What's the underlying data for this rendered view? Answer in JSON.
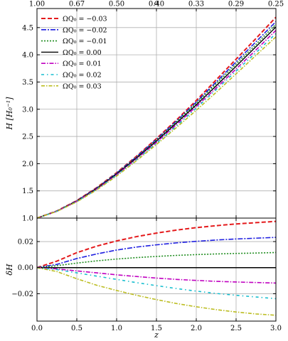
{
  "chart_data": [
    {
      "type": "line",
      "panel": "top",
      "xlabel": "z",
      "ylabel": "H [H₀⁻¹]",
      "top_xlabel": "a",
      "xlim": [
        0.0,
        3.0
      ],
      "ylim": [
        1.0,
        4.85
      ],
      "x_ticks": [
        "0.0",
        "0.5",
        "1.0",
        "1.5",
        "2.0",
        "2.5",
        "3.0"
      ],
      "y_ticks": [
        {
          "value": 1.0,
          "label": "1.0"
        },
        {
          "value": 1.5,
          "label": "1.5"
        },
        {
          "value": 2.0,
          "label": "2.0"
        },
        {
          "value": 2.5,
          "label": "2.5"
        },
        {
          "value": 3.0,
          "label": "3.0"
        },
        {
          "value": 3.5,
          "label": "3.5"
        },
        {
          "value": 4.0,
          "label": "4.0"
        },
        {
          "value": 4.5,
          "label": "4.5"
        }
      ],
      "top_ticks": [
        {
          "z": 0.0,
          "label": "1.00"
        },
        {
          "z": 0.5,
          "label": "0.67"
        },
        {
          "z": 1.0,
          "label": "0.50"
        },
        {
          "z": 1.5,
          "label": "0.40"
        },
        {
          "z": 2.0,
          "label": "0.33"
        },
        {
          "z": 2.5,
          "label": "0.29"
        },
        {
          "z": 3.0,
          "label": "0.25"
        }
      ],
      "grid": true,
      "legend": "top-left",
      "x": [
        0.0,
        0.25,
        0.5,
        0.75,
        1.0,
        1.25,
        1.5,
        1.75,
        2.0,
        2.25,
        2.5,
        2.75,
        3.0
      ],
      "series": [
        {
          "name": "ΩQ₀ = −0.03",
          "color": "#e41a1c",
          "dash": "6,3",
          "width": 2,
          "values": [
            1.0,
            1.131,
            1.322,
            1.56,
            1.834,
            2.137,
            2.46,
            2.8,
            3.16,
            3.54,
            3.92,
            4.3,
            4.69
          ]
        },
        {
          "name": "ΩQ₀ = −0.02",
          "color": "#1f1fe0",
          "dash": "7,2,2,2",
          "width": 1.6,
          "values": [
            1.0,
            1.129,
            1.318,
            1.553,
            1.826,
            2.127,
            2.446,
            2.782,
            3.131,
            3.5,
            3.87,
            4.24,
            4.61
          ]
        },
        {
          "name": "ΩQ₀ = −0.01",
          "color": "#1e8c1e",
          "dash": "2,2",
          "width": 1.6,
          "values": [
            1.0,
            1.128,
            1.315,
            1.548,
            1.818,
            2.116,
            2.43,
            2.766,
            3.11,
            3.47,
            3.83,
            4.19,
            4.56
          ]
        },
        {
          "name": "ΩQ₀ = 0.00",
          "color": "#000000",
          "dash": "",
          "width": 1.4,
          "values": [
            1.0,
            1.127,
            1.311,
            1.541,
            1.808,
            2.103,
            2.414,
            2.744,
            3.08,
            3.43,
            3.79,
            4.15,
            4.51
          ]
        },
        {
          "name": "ΩQ₀ = 0.01",
          "color": "#c000c0",
          "dash": "6,2,1.5,2",
          "width": 1.6,
          "values": [
            1.0,
            1.125,
            1.307,
            1.533,
            1.796,
            2.086,
            2.392,
            2.716,
            3.05,
            3.39,
            3.74,
            4.09,
            4.45
          ]
        },
        {
          "name": "ΩQ₀ = 0.02",
          "color": "#17becf",
          "dash": "4,4,1.5,4",
          "width": 1.6,
          "values": [
            1.0,
            1.124,
            1.302,
            1.526,
            1.786,
            2.072,
            2.374,
            2.69,
            3.02,
            3.36,
            3.7,
            4.04,
            4.39
          ]
        },
        {
          "name": "ΩQ₀ = 0.03",
          "color": "#bcbd22",
          "dash": "5,2,1.5,2",
          "width": 1.6,
          "values": [
            1.0,
            1.123,
            1.298,
            1.518,
            1.772,
            2.055,
            2.352,
            2.662,
            2.98,
            3.31,
            3.65,
            3.99,
            4.33
          ]
        }
      ]
    },
    {
      "type": "line",
      "panel": "bottom",
      "xlabel": "z",
      "ylabel": "δH",
      "xlim": [
        0.0,
        3.0
      ],
      "ylim": [
        -0.041,
        0.038
      ],
      "x_ticks": [
        "0.0",
        "0.5",
        "1.0",
        "1.5",
        "2.0",
        "2.5",
        "3.0"
      ],
      "y_ticks": [
        {
          "value": 0.02,
          "label": "0.02"
        },
        {
          "value": 0.0,
          "label": "0.00"
        },
        {
          "value": -0.02,
          "label": "−0.02"
        }
      ],
      "grid": true,
      "x": [
        0.0,
        0.25,
        0.5,
        0.75,
        1.0,
        1.25,
        1.5,
        1.75,
        2.0,
        2.25,
        2.5,
        2.75,
        3.0
      ],
      "series": [
        {
          "name": "ΩQ₀ = −0.03",
          "color": "#e41a1c",
          "dash": "6,3",
          "width": 2,
          "values": [
            0.0,
            0.005,
            0.0115,
            0.0165,
            0.0205,
            0.0238,
            0.0265,
            0.0288,
            0.0307,
            0.0322,
            0.0335,
            0.0345,
            0.0355
          ]
        },
        {
          "name": "ΩQ₀ = −0.02",
          "color": "#1f1fe0",
          "dash": "7,2,2,2",
          "width": 1.6,
          "values": [
            0.0,
            0.0025,
            0.007,
            0.0105,
            0.0135,
            0.0158,
            0.0175,
            0.019,
            0.0202,
            0.0212,
            0.022,
            0.0226,
            0.0232
          ]
        },
        {
          "name": "ΩQ₀ = −0.01",
          "color": "#1e8c1e",
          "dash": "2,2",
          "width": 1.6,
          "values": [
            0.0,
            0.0015,
            0.0035,
            0.0052,
            0.0066,
            0.0077,
            0.0086,
            0.0094,
            0.01,
            0.0105,
            0.0109,
            0.0112,
            0.0116
          ]
        },
        {
          "name": "ΩQ₀ = 0.00",
          "color": "#000000",
          "dash": "",
          "width": 1.4,
          "values": [
            0.0,
            0.0,
            0.0,
            0.0,
            0.0,
            0.0,
            0.0,
            0.0,
            0.0,
            0.0,
            0.0,
            0.0,
            0.0
          ]
        },
        {
          "name": "ΩQ₀ = 0.01",
          "color": "#c000c0",
          "dash": "6,2,1.5,2",
          "width": 1.6,
          "values": [
            0.0,
            -0.001,
            -0.0025,
            -0.004,
            -0.0055,
            -0.0068,
            -0.008,
            -0.009,
            -0.0098,
            -0.0105,
            -0.011,
            -0.0114,
            -0.0118
          ]
        },
        {
          "name": "ΩQ₀ = 0.02",
          "color": "#17becf",
          "dash": "4,4,1.5,4",
          "width": 1.6,
          "values": [
            0.0,
            -0.0015,
            -0.004,
            -0.0065,
            -0.009,
            -0.0115,
            -0.0138,
            -0.016,
            -0.018,
            -0.0198,
            -0.0212,
            -0.0225,
            -0.0238
          ]
        },
        {
          "name": "ΩQ₀ = 0.03",
          "color": "#bcbd22",
          "dash": "5,2,1.5,2",
          "width": 1.6,
          "values": [
            0.0,
            -0.003,
            -0.0085,
            -0.0135,
            -0.0175,
            -0.0212,
            -0.0245,
            -0.0275,
            -0.03,
            -0.0322,
            -0.034,
            -0.0355,
            -0.0365
          ]
        }
      ]
    }
  ]
}
